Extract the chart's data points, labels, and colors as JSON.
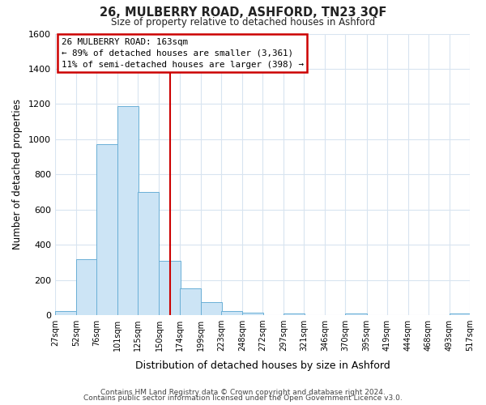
{
  "title": "26, MULBERRY ROAD, ASHFORD, TN23 3QF",
  "subtitle": "Size of property relative to detached houses in Ashford",
  "xlabel": "Distribution of detached houses by size in Ashford",
  "ylabel": "Number of detached properties",
  "bar_left_edges": [
    27,
    52,
    76,
    101,
    125,
    150,
    174,
    199,
    223,
    248,
    272,
    297,
    321,
    346,
    370,
    395,
    419,
    444,
    468,
    493
  ],
  "bar_heights": [
    25,
    320,
    970,
    1190,
    700,
    310,
    150,
    75,
    25,
    15,
    0,
    10,
    0,
    0,
    10,
    0,
    0,
    0,
    0,
    10
  ],
  "bin_width": 25,
  "bar_facecolor": "#cce4f5",
  "bar_edgecolor": "#6aafd6",
  "vline_x": 163,
  "vline_color": "#cc0000",
  "ylim": [
    0,
    1600
  ],
  "yticks": [
    0,
    200,
    400,
    600,
    800,
    1000,
    1200,
    1400,
    1600
  ],
  "xtick_labels": [
    "27sqm",
    "52sqm",
    "76sqm",
    "101sqm",
    "125sqm",
    "150sqm",
    "174sqm",
    "199sqm",
    "223sqm",
    "248sqm",
    "272sqm",
    "297sqm",
    "321sqm",
    "346sqm",
    "370sqm",
    "395sqm",
    "419sqm",
    "444sqm",
    "468sqm",
    "493sqm",
    "517sqm"
  ],
  "xtick_positions": [
    27,
    52,
    76,
    101,
    125,
    150,
    174,
    199,
    223,
    248,
    272,
    297,
    321,
    346,
    370,
    395,
    419,
    444,
    468,
    493,
    517
  ],
  "annotation_line1": "26 MULBERRY ROAD: 163sqm",
  "annotation_line2": "← 89% of detached houses are smaller (3,361)",
  "annotation_line3": "11% of semi-detached houses are larger (398) →",
  "bg_color": "#ffffff",
  "plot_bg_color": "#ffffff",
  "grid_color": "#d8e4f0",
  "footer_line1": "Contains HM Land Registry data © Crown copyright and database right 2024.",
  "footer_line2": "Contains public sector information licensed under the Open Government Licence v3.0."
}
